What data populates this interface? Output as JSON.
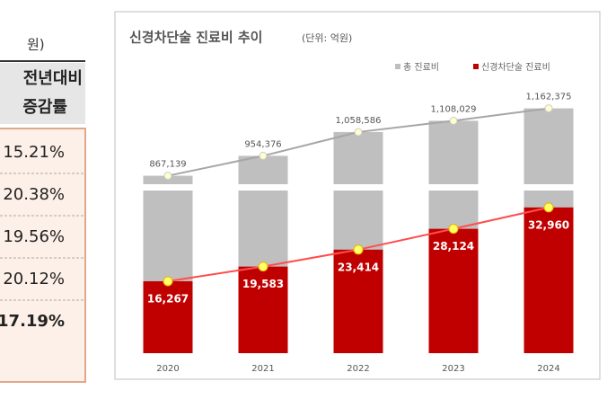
{
  "table": {
    "unit": "원)",
    "header": [
      "전년대비",
      "증감률"
    ],
    "rows": [
      "15.21%",
      "20.38%",
      "19.56%",
      "20.12%",
      "17.19%"
    ]
  },
  "chart_data": {
    "type": "bar",
    "title": "신경차단술 진료비 추이",
    "subtitle": "(단위: 억원)",
    "categories": [
      "2020",
      "2021",
      "2022",
      "2023",
      "2024"
    ],
    "marker_color": "#ffff66",
    "series": [
      {
        "name": "총 진료비",
        "color": "#bfbfbf",
        "line_color": "#a6a6a6",
        "values": [
          867139,
          954376,
          1058586,
          1108029,
          1162375
        ],
        "value_labels": [
          "867,139",
          "954,376",
          "1,058,586",
          "1,108,029",
          "1,162,375"
        ]
      },
      {
        "name": "신경차단술 진료비",
        "color": "#c00000",
        "line_color": "#ff4d4d",
        "values": [
          16267,
          19583,
          23414,
          28124,
          32960
        ],
        "value_labels": [
          "16,267",
          "19,583",
          "23,414",
          "28,124",
          "32,960"
        ]
      }
    ]
  }
}
